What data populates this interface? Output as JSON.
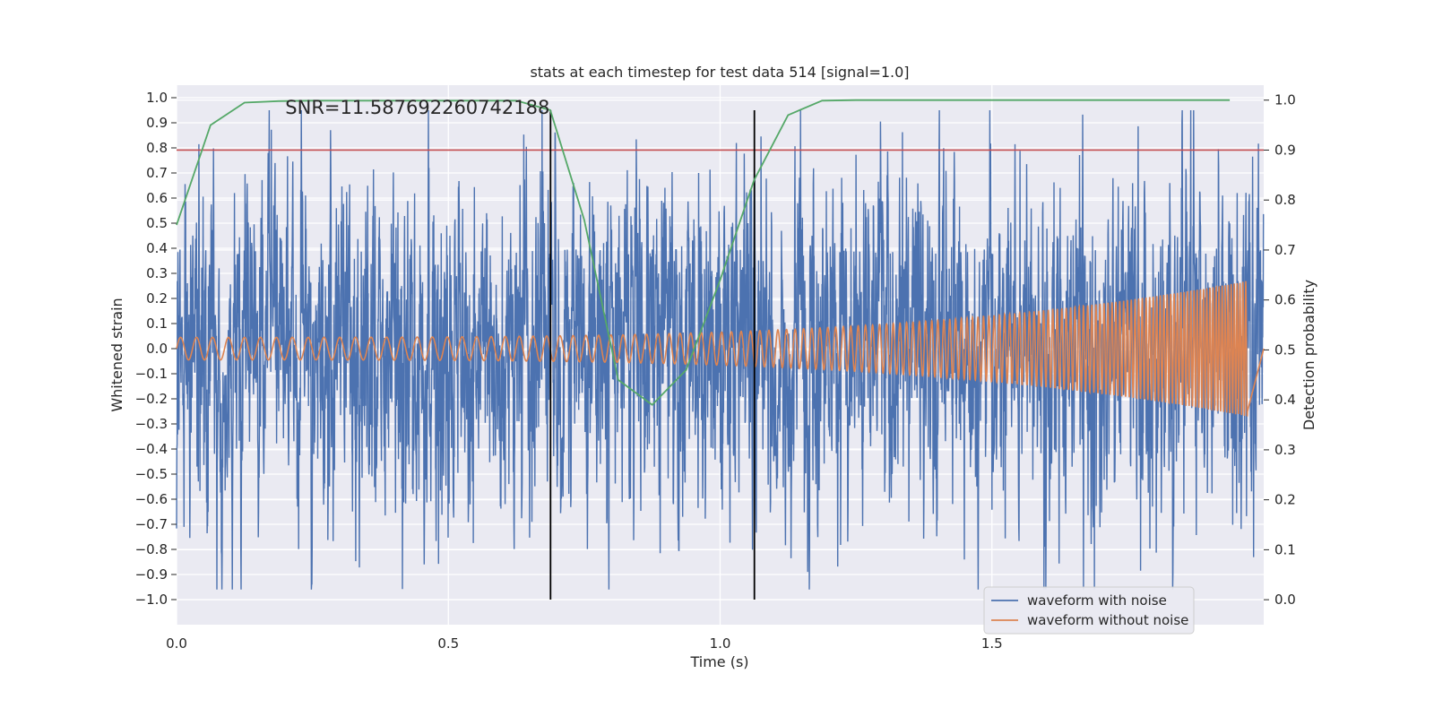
{
  "chart_data": {
    "type": "line",
    "title": "stats at each timestep for test data 514 [signal=1.0]",
    "xlabel": "Time (s)",
    "ylabel": "Whitened strain",
    "y2label": "Detection probability",
    "xlim": [
      0.0,
      2.0
    ],
    "ylim": [
      -1.1,
      1.05
    ],
    "y2lim": [
      -0.05,
      1.03
    ],
    "x_ticks": [
      0.0,
      0.5,
      1.0,
      1.5
    ],
    "x_tick_labels": [
      "0.0",
      "0.5",
      "1.0",
      "1.5"
    ],
    "y_ticks": [
      1.0,
      0.9,
      0.8,
      0.7,
      0.6,
      0.5,
      0.4,
      0.3,
      0.2,
      0.1,
      0.0,
      -0.1,
      -0.2,
      -0.3,
      -0.4,
      -0.5,
      -0.6,
      -0.7,
      -0.8,
      -0.9,
      -1.0
    ],
    "y_tick_labels": [
      "1.0",
      "0.9",
      "0.8",
      "0.7",
      "0.6",
      "0.5",
      "0.4",
      "0.3",
      "0.2",
      "0.1",
      "0.0",
      "−0.1",
      "−0.2",
      "−0.3",
      "−0.4",
      "−0.5",
      "−0.6",
      "−0.7",
      "−0.8",
      "−0.9",
      "−1.0"
    ],
    "y2_ticks": [
      1.0,
      0.9,
      0.8,
      0.7,
      0.6,
      0.5,
      0.4,
      0.3,
      0.2,
      0.1,
      0.0
    ],
    "y2_tick_labels": [
      "1.0",
      "0.9",
      "0.8",
      "0.7",
      "0.6",
      "0.5",
      "0.4",
      "0.3",
      "0.2",
      "0.1",
      "0.0"
    ],
    "grid": true,
    "annotation": "SNR=11.587692260742188",
    "annotation_anchor": {
      "x": 0.2,
      "y": 0.96
    },
    "threshold": {
      "axis": "right",
      "value": 0.9,
      "color": "#c44e52"
    },
    "vlines": {
      "x": [
        0.688,
        1.063
      ],
      "ymin": -1.0,
      "ymax": 0.95,
      "color": "#000000"
    },
    "series": [
      {
        "name": "waveform with noise",
        "axis": "left",
        "color": "#4c72b0",
        "sample_rate": 2048,
        "duration": 2.0,
        "amplitude_sd": 0.33,
        "note_values": "dense noisy signal with spikes up to ~0.95 and down to ~-0.96"
      },
      {
        "name": "waveform without noise",
        "axis": "left",
        "color": "#dd8452",
        "chirp": {
          "t_start": 0.0,
          "t_end": 1.97,
          "f_start": 34,
          "f_end": 190,
          "amplitude_start": 0.045,
          "amplitude_end": 0.27
        }
      },
      {
        "name": "detection probability",
        "axis": "right",
        "color": "#55a868",
        "x": [
          0.0,
          0.0625,
          0.125,
          0.1875,
          0.25,
          0.3125,
          0.375,
          0.4375,
          0.5,
          0.5625,
          0.625,
          0.6875,
          0.75,
          0.8125,
          0.875,
          0.9375,
          1.0,
          1.0625,
          1.125,
          1.1875,
          1.25,
          1.3125,
          1.375,
          1.4375,
          1.5,
          1.5625,
          1.625,
          1.6875,
          1.75,
          1.8125,
          1.875,
          1.9375
        ],
        "y": [
          0.75,
          0.95,
          0.995,
          0.998,
          0.999,
          0.999,
          0.999,
          0.999,
          0.999,
          0.999,
          0.999,
          0.98,
          0.76,
          0.44,
          0.39,
          0.46,
          0.64,
          0.84,
          0.97,
          0.999,
          1.0,
          1.0,
          1.0,
          1.0,
          1.0,
          1.0,
          1.0,
          1.0,
          1.0,
          1.0,
          1.0,
          1.0
        ]
      }
    ],
    "legend": {
      "placement": "lower-right",
      "entries": [
        {
          "label": "waveform with noise",
          "color": "#4c72b0"
        },
        {
          "label": "waveform without noise",
          "color": "#dd8452"
        }
      ]
    }
  }
}
